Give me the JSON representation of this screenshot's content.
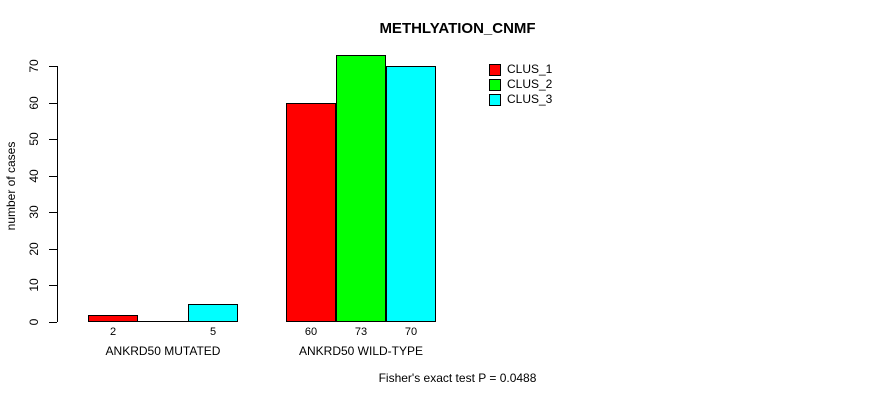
{
  "chart_data": {
    "type": "bar",
    "title": "METHLYATION_CNMF",
    "ylabel": "number of cases",
    "xlabel": "",
    "ylim": [
      0,
      70
    ],
    "yticks": [
      0,
      10,
      20,
      30,
      40,
      50,
      60,
      70
    ],
    "categories": [
      "ANKRD50 MUTATED",
      "ANKRD50 WILD-TYPE"
    ],
    "series": [
      {
        "name": "CLUS_1",
        "color": "#ff0000",
        "values": [
          2,
          60
        ]
      },
      {
        "name": "CLUS_2",
        "color": "#00ff00",
        "values": [
          0,
          73
        ]
      },
      {
        "name": "CLUS_3",
        "color": "#00ffff",
        "values": [
          5,
          70
        ]
      }
    ],
    "bar_value_labels": [
      [
        "2",
        "",
        "5"
      ],
      [
        "60",
        "73",
        "70"
      ]
    ],
    "legend": {
      "position": "top-right",
      "entries": [
        "CLUS_1",
        "CLUS_2",
        "CLUS_3"
      ]
    },
    "annotation": "Fisher's exact test P = 0.0488",
    "grid": false,
    "background": "#ffffff",
    "axis_color": "#000000",
    "bar_border_color": "#000000",
    "text_color": "#000000"
  }
}
